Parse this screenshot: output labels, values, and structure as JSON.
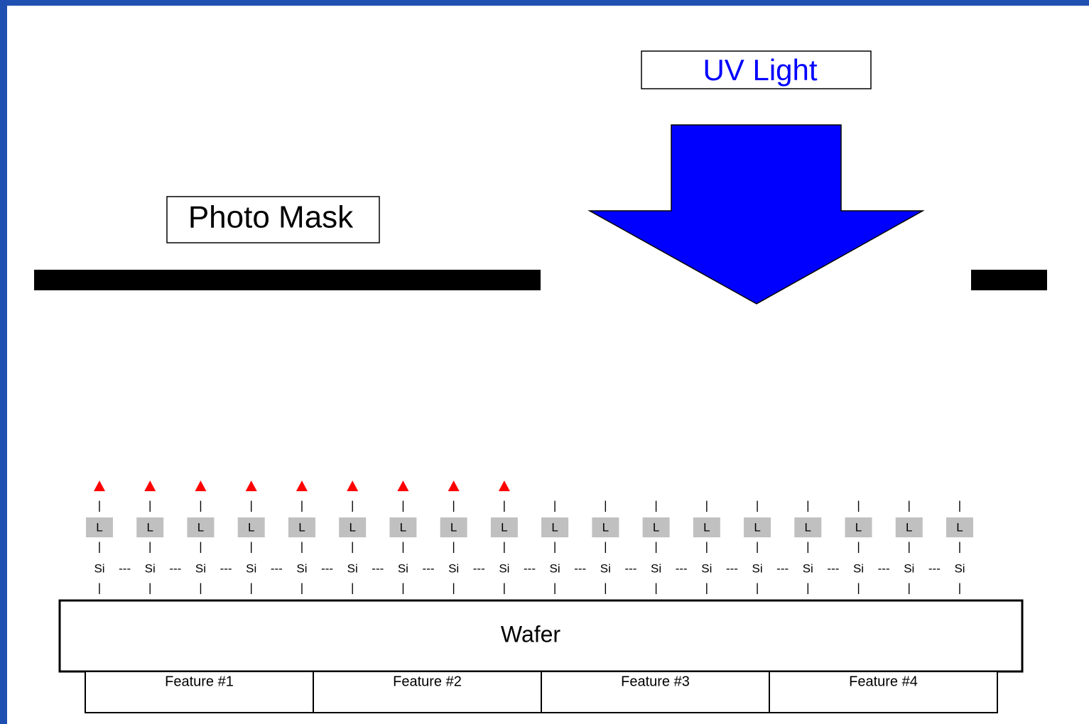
{
  "uv_light": {
    "label": "UV Light"
  },
  "photo_mask": {
    "label": "Photo Mask"
  },
  "wafer": {
    "label": "Wafer"
  },
  "features": [
    "Feature #1",
    "Feature #2",
    "Feature #3",
    "Feature #4"
  ],
  "columns": [
    {
      "bond_top": "|",
      "linker": "L",
      "bond_mid": "|",
      "atom": "Si",
      "bond_bottom": "|"
    },
    {
      "bond_top": "|",
      "linker": "L",
      "bond_mid": "|",
      "atom": "Si",
      "bond_bottom": "|"
    },
    {
      "bond_top": "|",
      "linker": "L",
      "bond_mid": "|",
      "atom": "Si",
      "bond_bottom": "|"
    },
    {
      "bond_top": "|",
      "linker": "L",
      "bond_mid": "|",
      "atom": "Si",
      "bond_bottom": "|"
    },
    {
      "bond_top": "|",
      "linker": "L",
      "bond_mid": "|",
      "atom": "Si",
      "bond_bottom": "|"
    },
    {
      "bond_top": "|",
      "linker": "L",
      "bond_mid": "|",
      "atom": "Si",
      "bond_bottom": "|"
    },
    {
      "bond_top": "|",
      "linker": "L",
      "bond_mid": "|",
      "atom": "Si",
      "bond_bottom": "|"
    },
    {
      "bond_top": "|",
      "linker": "L",
      "bond_mid": "|",
      "atom": "Si",
      "bond_bottom": "|"
    },
    {
      "bond_top": "|",
      "linker": "L",
      "bond_mid": "|",
      "atom": "Si",
      "bond_bottom": "|"
    },
    {
      "bond_top": "|",
      "linker": "L",
      "bond_mid": "|",
      "atom": "Si",
      "bond_bottom": "|"
    },
    {
      "bond_top": "|",
      "linker": "L",
      "bond_mid": "|",
      "atom": "Si",
      "bond_bottom": "|"
    },
    {
      "bond_top": "|",
      "linker": "L",
      "bond_mid": "|",
      "atom": "Si",
      "bond_bottom": "|"
    },
    {
      "bond_top": "|",
      "linker": "L",
      "bond_mid": "|",
      "atom": "Si",
      "bond_bottom": "|"
    },
    {
      "bond_top": "|",
      "linker": "L",
      "bond_mid": "|",
      "atom": "Si",
      "bond_bottom": "|"
    },
    {
      "bond_top": "|",
      "linker": "L",
      "bond_mid": "|",
      "atom": "Si",
      "bond_bottom": "|"
    },
    {
      "bond_top": "|",
      "linker": "L",
      "bond_mid": "|",
      "atom": "Si",
      "bond_bottom": "|"
    },
    {
      "bond_top": "|",
      "linker": "L",
      "bond_mid": "|",
      "atom": "Si",
      "bond_bottom": "|"
    },
    {
      "bond_top": "|",
      "linker": "L",
      "bond_mid": "|",
      "atom": "Si",
      "bond_bottom": "|"
    }
  ],
  "bonds": [
    "---",
    "---",
    "---",
    "---",
    "---",
    "---",
    "---",
    "---",
    "---",
    "---",
    "---",
    "---",
    "---",
    "---",
    "---",
    "---",
    "---"
  ]
}
